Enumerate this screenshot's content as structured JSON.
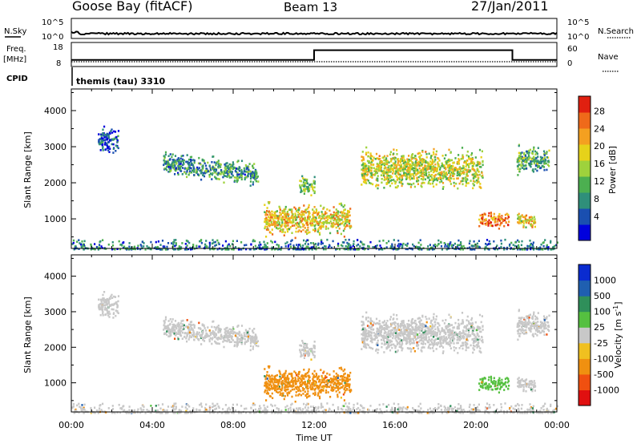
{
  "header": {
    "station": "Goose Bay (fitACF)",
    "beam": "Beam 13",
    "date": "27/Jan/2011"
  },
  "strips": {
    "nsky_label": "N.Sky",
    "nsearch_label": "N.Search",
    "noise_tick_top": "10^5",
    "noise_tick_bottom": "10^0",
    "freq_label": "Freq.",
    "freq_unit": "[MHz]",
    "freq_ticks": [
      "18",
      "8"
    ],
    "nave_label": "Nave",
    "nave_ticks": [
      "60",
      "0"
    ],
    "cpid_label": "CPID",
    "cpid_value": "themis (tau) 3310"
  },
  "chart_data": [
    {
      "type": "heatmap",
      "panel": "power",
      "ylabel": "Slant Range [km]",
      "xlabel": "Time UT",
      "x_ticks": [
        "00:00",
        "04:00",
        "08:00",
        "12:00",
        "16:00",
        "20:00",
        "00:00"
      ],
      "y_ticks": [
        "1000",
        "2000",
        "3000",
        "4000"
      ],
      "ylim": [
        180,
        4600
      ],
      "colorbar": {
        "label": "Power [dB]",
        "ticks": [
          "4",
          "8",
          "12",
          "16",
          "20",
          "24",
          "28"
        ],
        "colors": [
          "#0000dd",
          "#1a4fb0",
          "#2f8f7a",
          "#4caf50",
          "#9ed23c",
          "#e6d21a",
          "#f4a020",
          "#ef6a1a",
          "#e02010"
        ]
      },
      "echo_regions": [
        {
          "t0": 1.3,
          "t1": 2.3,
          "r0": 2900,
          "r1": 3550,
          "level": 4
        },
        {
          "t0": 4.5,
          "t1": 9.2,
          "r0": 2100,
          "r1": 2700,
          "level": 10
        },
        {
          "t0": 9.5,
          "t1": 13.8,
          "r0": 600,
          "r1": 1400,
          "level": 20
        },
        {
          "t0": 11.2,
          "t1": 12.0,
          "r0": 1700,
          "r1": 2200,
          "level": 14
        },
        {
          "t0": 14.3,
          "t1": 20.3,
          "r0": 1900,
          "r1": 2900,
          "level": 18
        },
        {
          "t0": 20.1,
          "t1": 21.6,
          "r0": 800,
          "r1": 1200,
          "level": 26
        },
        {
          "t0": 22.0,
          "t1": 22.9,
          "r0": 800,
          "r1": 1200,
          "level": 20
        },
        {
          "t0": 22.0,
          "t1": 23.6,
          "r0": 2300,
          "r1": 3000,
          "level": 12
        },
        {
          "t0": 0.0,
          "t1": 24.0,
          "r0": 180,
          "r1": 450,
          "level": 8
        }
      ]
    },
    {
      "type": "heatmap",
      "panel": "velocity",
      "ylabel": "Slant Range [km]",
      "xlabel": "Time UT",
      "x_ticks": [
        "00:00",
        "04:00",
        "08:00",
        "12:00",
        "16:00",
        "20:00",
        "00:00"
      ],
      "y_ticks": [
        "1000",
        "2000",
        "3000",
        "4000"
      ],
      "ylim": [
        180,
        4600
      ],
      "colorbar": {
        "label": "Velocity [m s^-1]",
        "ticks": [
          "1000",
          "500",
          "100",
          "25",
          "-25",
          "-100",
          "-500",
          "-1000"
        ],
        "colors": [
          "#0a2bd0",
          "#1f5fb0",
          "#2f8f5a",
          "#55c040",
          "#c8c8c8",
          "#f0c020",
          "#f09010",
          "#f05010",
          "#e01010"
        ]
      },
      "echo_regions": [
        {
          "t0": 1.3,
          "t1": 2.3,
          "r0": 2900,
          "r1": 3550,
          "velocity": 0
        },
        {
          "t0": 4.5,
          "t1": 9.2,
          "r0": 2100,
          "r1": 2700,
          "velocity": 0
        },
        {
          "t0": 9.5,
          "t1": 13.8,
          "r0": 600,
          "r1": 1400,
          "velocity": -150
        },
        {
          "t0": 11.2,
          "t1": 12.0,
          "r0": 1700,
          "r1": 2200,
          "velocity": 0
        },
        {
          "t0": 14.3,
          "t1": 20.3,
          "r0": 1900,
          "r1": 2900,
          "velocity": 0
        },
        {
          "t0": 20.1,
          "t1": 21.6,
          "r0": 800,
          "r1": 1200,
          "velocity": 60
        },
        {
          "t0": 22.0,
          "t1": 22.9,
          "r0": 800,
          "r1": 1200,
          "velocity": 0
        },
        {
          "t0": 22.0,
          "t1": 23.6,
          "r0": 2300,
          "r1": 3000,
          "velocity": 0
        },
        {
          "t0": 0.0,
          "t1": 24.0,
          "r0": 180,
          "r1": 450,
          "velocity": 0
        }
      ]
    }
  ],
  "strip_data": {
    "freq_mhz": [
      {
        "t0": 0,
        "t1": 12.0,
        "value": 10.5
      },
      {
        "t0": 12.0,
        "t1": 21.8,
        "value": 15.0
      },
      {
        "t0": 21.8,
        "t1": 24.0,
        "value": 10.5
      }
    ]
  }
}
